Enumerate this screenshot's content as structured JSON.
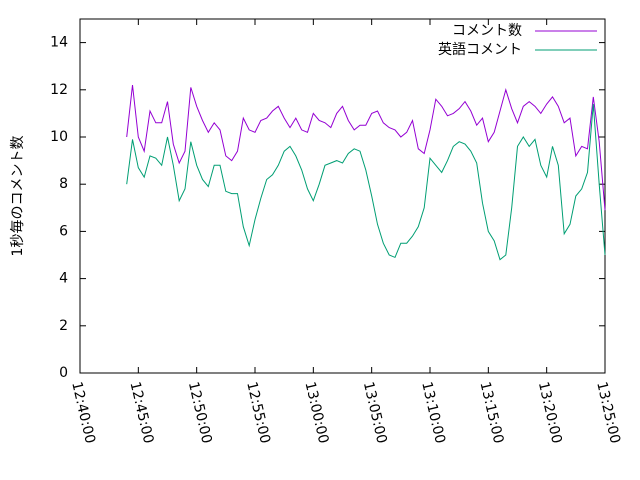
{
  "chart_data": {
    "type": "line",
    "ylabel": "1秒毎のコメント数",
    "x": [
      "12:44:00",
      "12:44:30",
      "12:45:00",
      "12:45:30",
      "12:46:00",
      "12:46:30",
      "12:47:00",
      "12:47:30",
      "12:48:00",
      "12:48:30",
      "12:49:00",
      "12:49:30",
      "12:50:00",
      "12:50:30",
      "12:51:00",
      "12:51:30",
      "12:52:00",
      "12:52:30",
      "12:53:00",
      "12:53:30",
      "12:54:00",
      "12:54:30",
      "12:55:00",
      "12:55:30",
      "12:56:00",
      "12:56:30",
      "12:57:00",
      "12:57:30",
      "12:58:00",
      "12:58:30",
      "12:59:00",
      "12:59:30",
      "13:00:00",
      "13:00:30",
      "13:01:00",
      "13:01:30",
      "13:02:00",
      "13:02:30",
      "13:03:00",
      "13:03:30",
      "13:04:00",
      "13:04:30",
      "13:05:00",
      "13:05:30",
      "13:06:00",
      "13:06:30",
      "13:07:00",
      "13:07:30",
      "13:08:00",
      "13:08:30",
      "13:09:00",
      "13:09:30",
      "13:10:00",
      "13:10:30",
      "13:11:00",
      "13:11:30",
      "13:12:00",
      "13:12:30",
      "13:13:00",
      "13:13:30",
      "13:14:00",
      "13:14:30",
      "13:15:00",
      "13:15:30",
      "13:16:00",
      "13:16:30",
      "13:17:00",
      "13:17:30",
      "13:18:00",
      "13:18:30",
      "13:19:00",
      "13:19:30",
      "13:20:00",
      "13:20:30",
      "13:21:00",
      "13:21:30",
      "13:22:00",
      "13:22:30",
      "13:23:00",
      "13:23:30",
      "13:24:00",
      "13:24:30",
      "13:25:00"
    ],
    "series": [
      {
        "name": "コメント数",
        "color": "#9400d3",
        "values": [
          10.0,
          12.2,
          10.0,
          9.4,
          11.1,
          10.6,
          10.6,
          11.5,
          9.7,
          8.9,
          9.4,
          12.1,
          11.3,
          10.7,
          10.2,
          10.6,
          10.3,
          9.2,
          9.0,
          9.4,
          10.8,
          10.3,
          10.2,
          10.7,
          10.8,
          11.1,
          11.3,
          10.8,
          10.4,
          10.8,
          10.3,
          10.2,
          11.0,
          10.7,
          10.6,
          10.4,
          11.0,
          11.3,
          10.7,
          10.3,
          10.5,
          10.5,
          11.0,
          11.1,
          10.6,
          10.4,
          10.3,
          10.0,
          10.2,
          10.7,
          9.5,
          9.3,
          10.3,
          11.6,
          11.3,
          10.9,
          11.0,
          11.2,
          11.5,
          11.1,
          10.5,
          10.8,
          9.8,
          10.2,
          11.1,
          12.0,
          11.2,
          10.6,
          11.3,
          11.5,
          11.3,
          11.0,
          11.4,
          11.7,
          11.3,
          10.6,
          10.8,
          9.2,
          9.6,
          9.5,
          11.7,
          9.8,
          6.9
        ]
      },
      {
        "name": "英語コメント",
        "color": "#009e73",
        "values": [
          8.0,
          9.9,
          8.7,
          8.3,
          9.2,
          9.1,
          8.8,
          10.0,
          8.8,
          7.3,
          7.8,
          9.8,
          8.8,
          8.2,
          7.9,
          8.8,
          8.8,
          7.7,
          7.6,
          7.6,
          6.2,
          5.4,
          6.5,
          7.4,
          8.2,
          8.4,
          8.8,
          9.4,
          9.6,
          9.2,
          8.6,
          7.8,
          7.3,
          8.0,
          8.8,
          8.9,
          9.0,
          8.9,
          9.3,
          9.5,
          9.4,
          8.6,
          7.5,
          6.3,
          5.5,
          5.0,
          4.9,
          5.5,
          5.5,
          5.8,
          6.2,
          7.0,
          9.1,
          8.8,
          8.5,
          9.0,
          9.6,
          9.8,
          9.7,
          9.4,
          8.9,
          7.2,
          6.0,
          5.6,
          4.8,
          5.0,
          7.0,
          9.6,
          10.0,
          9.6,
          9.9,
          8.8,
          8.3,
          9.6,
          8.8,
          5.9,
          6.3,
          7.5,
          7.8,
          8.5,
          11.4,
          8.0,
          5.0
        ]
      }
    ],
    "xlim": [
      "12:40:00",
      "13:25:00"
    ],
    "xticks": [
      "12:40:00",
      "12:45:00",
      "12:50:00",
      "12:55:00",
      "13:00:00",
      "13:05:00",
      "13:10:00",
      "13:15:00",
      "13:20:00",
      "13:25:00"
    ],
    "ylim": [
      0,
      15
    ],
    "yticks": [
      0,
      2,
      4,
      6,
      8,
      10,
      12,
      14
    ],
    "legend": "upper right"
  }
}
